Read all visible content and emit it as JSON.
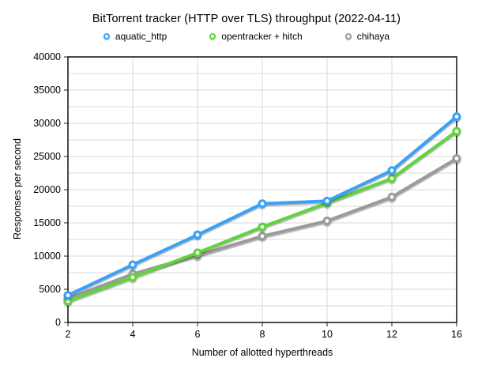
{
  "title": "BitTorrent tracker (HTTP over TLS) throughput (2022-04-11)",
  "legend": [
    {
      "label": "aquatic_http",
      "color": "#3aa0f8"
    },
    {
      "label": "opentracker + hitch",
      "color": "#5ed43a"
    },
    {
      "label": "chihaya",
      "color": "#9b9b9b"
    }
  ],
  "chart_data": {
    "type": "line",
    "title": "BitTorrent tracker (HTTP over TLS) throughput (2022-04-11)",
    "xlabel": "Number of allotted hyperthreads",
    "ylabel": "Responses per second",
    "x": [
      2,
      4,
      6,
      8,
      10,
      12,
      16
    ],
    "x_treated_as_categories": true,
    "ylim": [
      0,
      40000
    ],
    "y_major_step": 5000,
    "y_minor_step": 2500,
    "grid": true,
    "legend_position": "top",
    "series": [
      {
        "name": "aquatic_http",
        "color": "#3aa0f8",
        "values": [
          4100,
          8700,
          13200,
          17900,
          18300,
          22900,
          31000
        ]
      },
      {
        "name": "opentracker + hitch",
        "color": "#5ed43a",
        "values": [
          3200,
          6800,
          10500,
          14400,
          18000,
          21700,
          28800
        ]
      },
      {
        "name": "chihaya",
        "color": "#9b9b9b",
        "values": [
          3600,
          7300,
          10100,
          13000,
          15300,
          18900,
          24700
        ]
      }
    ],
    "style": {
      "gridline_color": "#d9d9d9",
      "border_color": "#1d1d1d",
      "background": "#ffffff"
    }
  }
}
